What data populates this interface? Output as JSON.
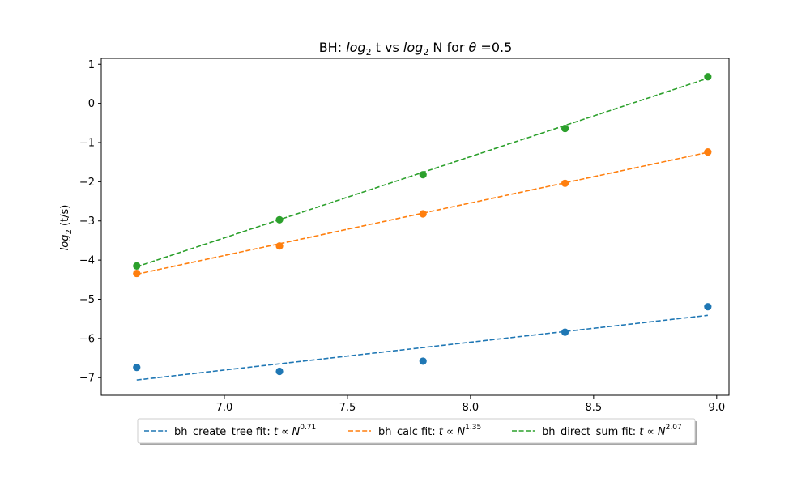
{
  "chart_data": {
    "type": "scatter",
    "title": {
      "prefix": "BH: ",
      "t_word": "log",
      "t_sub": "2",
      "mid": " t vs ",
      "n_word": "log",
      "n_sub": "2",
      "suffix_a": " N for ",
      "theta": "θ",
      "suffix_b": " =0.5"
    },
    "ylabel": {
      "word": "log",
      "sub": "2",
      "rest": " (t/s)"
    },
    "xlim": [
      6.5,
      9.05
    ],
    "ylim": [
      -7.45,
      1.15
    ],
    "xticks": [
      7.0,
      7.5,
      8.0,
      8.5,
      9.0
    ],
    "xtick_labels": [
      "7.0",
      "7.5",
      "8.0",
      "8.5",
      "9.0"
    ],
    "yticks": [
      1,
      0,
      -1,
      -2,
      -3,
      -4,
      -5,
      -6,
      -7
    ],
    "ytick_labels": [
      "1",
      "0",
      "−1",
      "−2",
      "−3",
      "−4",
      "−5",
      "−6",
      "−7"
    ],
    "x": [
      6.644,
      7.224,
      7.807,
      8.384,
      8.964
    ],
    "grid": false,
    "legend_position": "below",
    "series": [
      {
        "name": "bh_create_tree",
        "color": "#1f77b4",
        "points": [
          -6.74,
          -6.84,
          -6.58,
          -5.84,
          -5.19
        ],
        "fit_y": [
          -7.06,
          -5.41
        ],
        "legend_text": "bh_create_tree fit: ",
        "legend_math": "t ∝ N",
        "legend_exp": "0.71"
      },
      {
        "name": "bh_calc",
        "color": "#ff7f0e",
        "points": [
          -4.34,
          -3.64,
          -2.82,
          -2.04,
          -1.24
        ],
        "fit_y": [
          -4.36,
          -1.25
        ],
        "legend_text": "bh_calc fit: ",
        "legend_math": "t ∝ N",
        "legend_exp": "1.35"
      },
      {
        "name": "bh_direct_sum",
        "color": "#2ca02c",
        "points": [
          -4.15,
          -2.97,
          -1.82,
          -0.64,
          0.68
        ],
        "fit_y": [
          -4.17,
          0.64
        ],
        "legend_text": "bh_direct_sum fit: ",
        "legend_math": "t ∝ N",
        "legend_exp": "2.07"
      }
    ]
  }
}
